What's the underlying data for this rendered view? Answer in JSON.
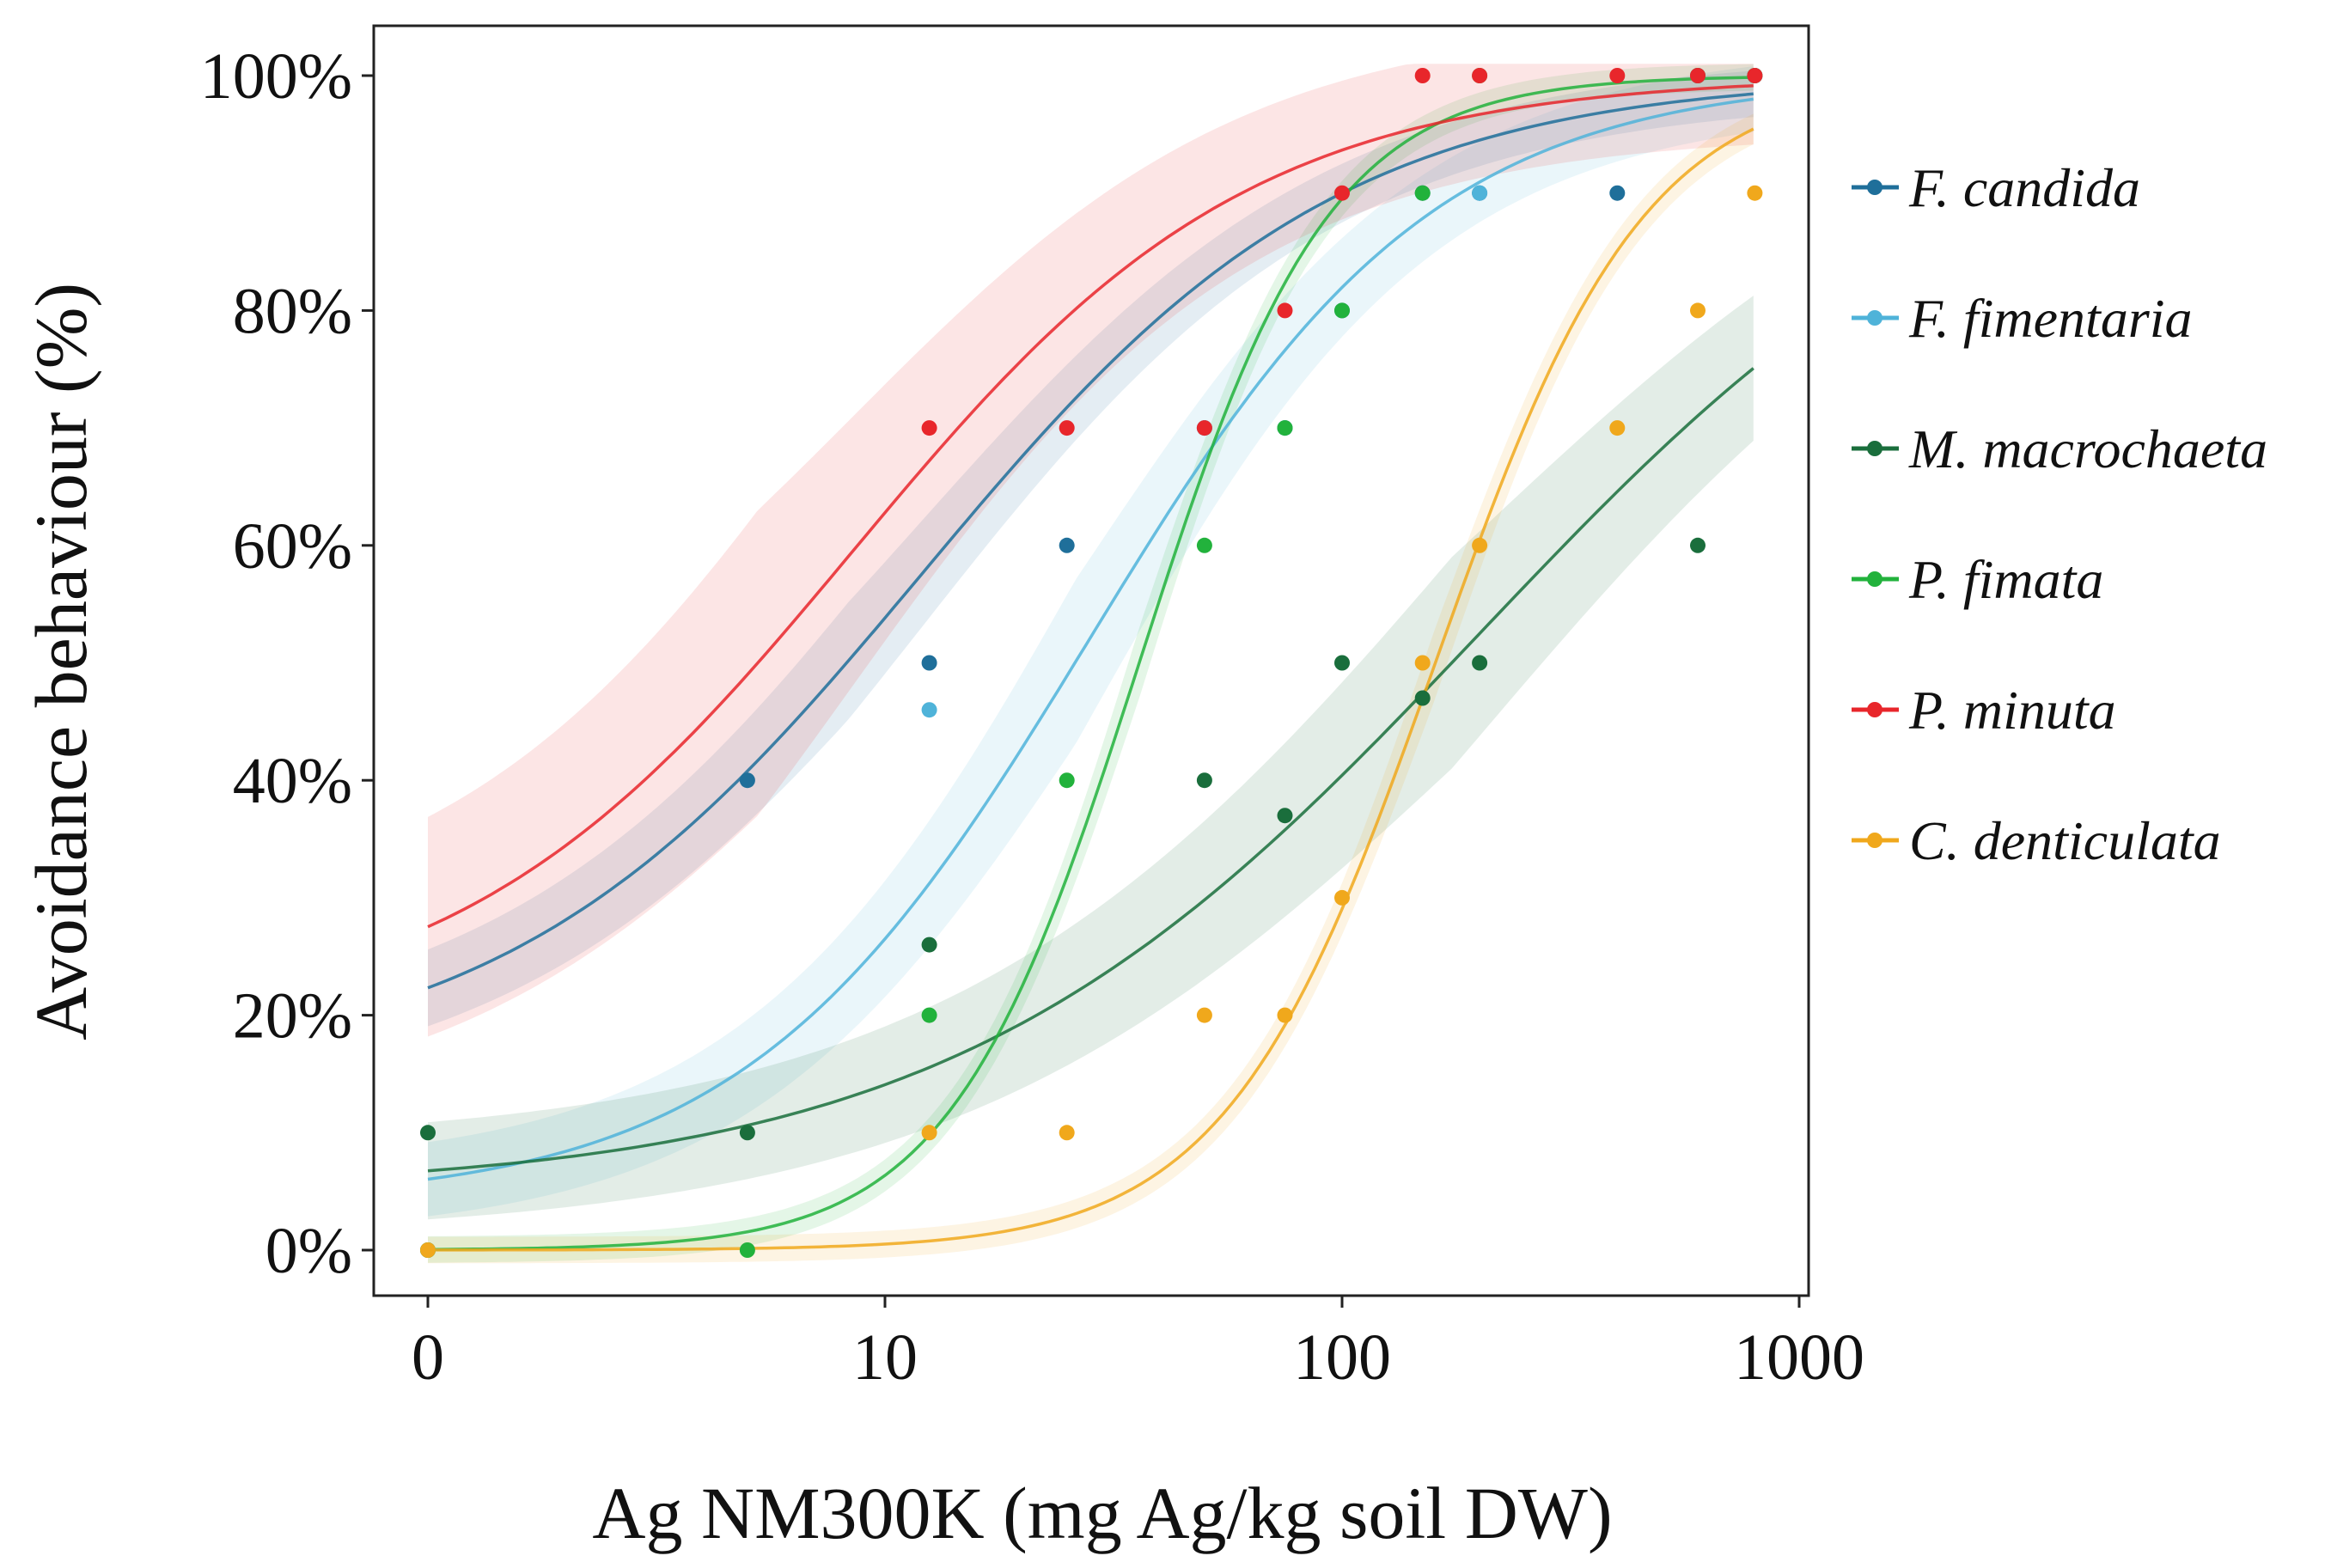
{
  "chart_data": {
    "type": "scatter",
    "title": "",
    "xlabel": "Ag NM300K (mg Ag/kg soil DW)",
    "ylabel": "Avoidance behaviour (%)",
    "xscale": "log (0 plotted at left edge)",
    "xlim": [
      0.85,
      1000
    ],
    "ylim": [
      -4,
      104
    ],
    "x_ticks": [
      {
        "value": 1,
        "label": "0"
      },
      {
        "value": 10,
        "label": "10"
      },
      {
        "value": 100,
        "label": "100"
      },
      {
        "value": 1000,
        "label": "1000"
      }
    ],
    "y_ticks": [
      {
        "value": 0,
        "label": "0%"
      },
      {
        "value": 20,
        "label": "20%"
      },
      {
        "value": 40,
        "label": "40%"
      },
      {
        "value": 60,
        "label": "60%"
      },
      {
        "value": 80,
        "label": "80%"
      },
      {
        "value": 100,
        "label": "100%"
      }
    ],
    "grid": false,
    "legend_position": "right",
    "series": [
      {
        "name": "F. candida",
        "color": "#1f6f9a",
        "fit": "dose-response curve with confidence band",
        "x": [
          1,
          5,
          12.5,
          25,
          50,
          75,
          100,
          150,
          200,
          400,
          600,
          800
        ],
        "y": [
          0,
          40,
          50,
          60,
          70,
          70,
          80,
          90,
          90,
          90,
          100,
          100
        ]
      },
      {
        "name": "F. fimentaria",
        "color": "#4fb3d9",
        "fit": "dose-response curve with confidence band",
        "x": [
          1,
          12.5,
          50,
          75,
          200,
          600,
          800
        ],
        "y": [
          0,
          46,
          70,
          70,
          90,
          100,
          100
        ]
      },
      {
        "name": "M. macrochaeta",
        "color": "#1a6e3c",
        "fit": "dose-response curve with confidence band",
        "x": [
          1,
          5,
          12.5,
          50,
          75,
          100,
          150,
          200,
          600
        ],
        "y": [
          10,
          10,
          26,
          40,
          37,
          50,
          47,
          50,
          60
        ]
      },
      {
        "name": "P. fimata",
        "color": "#22b23c",
        "fit": "dose-response curve with confidence band",
        "x": [
          1,
          5,
          12.5,
          25,
          50,
          75,
          100,
          150,
          200,
          600,
          800
        ],
        "y": [
          0,
          0,
          20,
          40,
          60,
          70,
          80,
          90,
          100,
          100,
          100
        ]
      },
      {
        "name": "P. minuta",
        "color": "#e8262b",
        "fit": "dose-response curve with confidence band",
        "x": [
          12.5,
          25,
          50,
          75,
          100,
          150,
          200,
          400,
          600,
          800
        ],
        "y": [
          70,
          70,
          70,
          80,
          90,
          100,
          100,
          100,
          100,
          100
        ]
      },
      {
        "name": "C. denticulata",
        "color": "#f0a81c",
        "fit": "dose-response curve with confidence band",
        "x": [
          1,
          12.5,
          25,
          50,
          75,
          100,
          150,
          200,
          400,
          600,
          800
        ],
        "y": [
          0,
          10,
          10,
          20,
          20,
          30,
          50,
          60,
          70,
          80,
          90
        ]
      }
    ]
  }
}
